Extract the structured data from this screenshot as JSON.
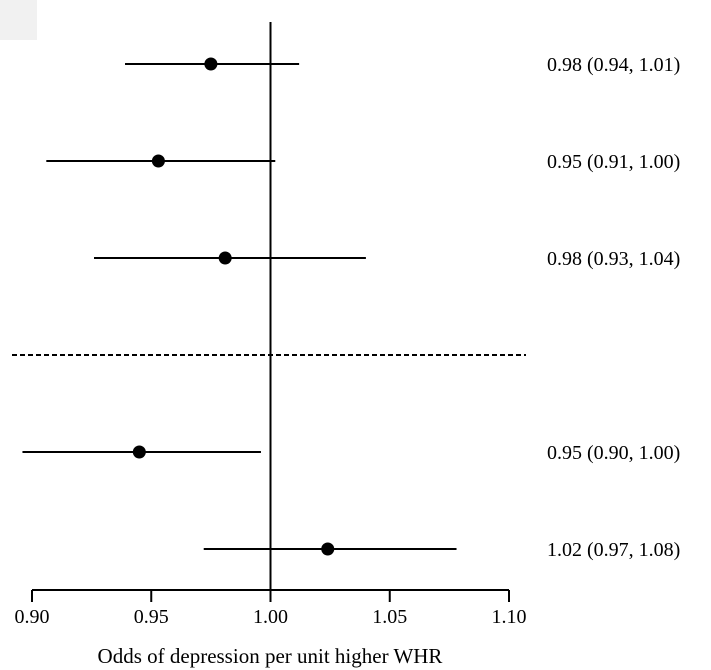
{
  "chart_data": {
    "type": "forest",
    "xlabel": "Odds of depression per unit higher WHR",
    "xlim": [
      0.9,
      1.1
    ],
    "xticks": [
      0.9,
      0.95,
      1.0,
      1.05,
      1.1
    ],
    "tick_labels": [
      "0.90",
      "0.95",
      "1.00",
      "1.05",
      "1.10"
    ],
    "reference_line": 1.0,
    "separator_after_row": 3,
    "rows": [
      {
        "estimate": 0.975,
        "lower": 0.939,
        "upper": 1.012,
        "label": "0.98 (0.94, 1.01)"
      },
      {
        "estimate": 0.953,
        "lower": 0.906,
        "upper": 1.002,
        "label": "0.95 (0.91, 1.00)"
      },
      {
        "estimate": 0.981,
        "lower": 0.926,
        "upper": 1.04,
        "label": "0.98 (0.93, 1.04)"
      },
      {
        "estimate": 0.945,
        "lower": 0.896,
        "upper": 0.996,
        "label": "0.95 (0.90, 1.00)"
      },
      {
        "estimate": 1.024,
        "lower": 0.972,
        "upper": 1.078,
        "label": "1.02 (0.97, 1.08)"
      }
    ],
    "colors": {
      "marker": "#000000",
      "line": "#000000",
      "corner_box": "#f1f1f1"
    }
  }
}
